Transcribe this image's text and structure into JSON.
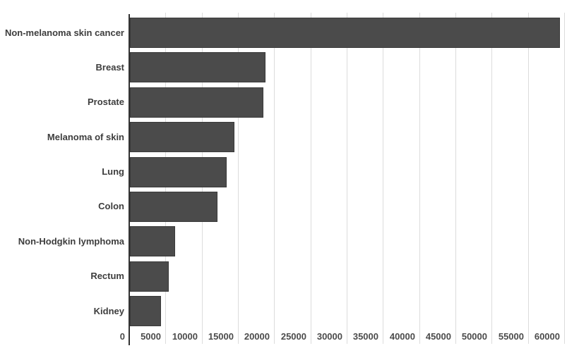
{
  "chart_data": {
    "type": "bar",
    "orientation": "horizontal",
    "title": "",
    "xlabel": "",
    "ylabel": "",
    "categories": [
      "Non-melanoma skin cancer",
      "Breast",
      "Prostate",
      "Melanoma of skin",
      "Lung",
      "Colon",
      "Non-Hodgkin lymphoma",
      "Rectum",
      "Kidney"
    ],
    "values": [
      59300,
      18700,
      18400,
      14400,
      13300,
      12100,
      6200,
      5400,
      4300
    ],
    "x_ticks": [
      0,
      5000,
      10000,
      15000,
      20000,
      25000,
      30000,
      35000,
      40000,
      45000,
      50000,
      55000,
      60000
    ],
    "xlim": [
      0,
      60000
    ],
    "grid": "vertical",
    "legend": "none",
    "colors": {
      "bar_fill": "#4b4b4b",
      "bar_border": "#3a3a3a",
      "axis_line": "#333333",
      "gridline": "#dcdcdc",
      "category_label": "#3d3d3d",
      "tick_label": "#4b4b4b",
      "background": "#ffffff"
    }
  }
}
